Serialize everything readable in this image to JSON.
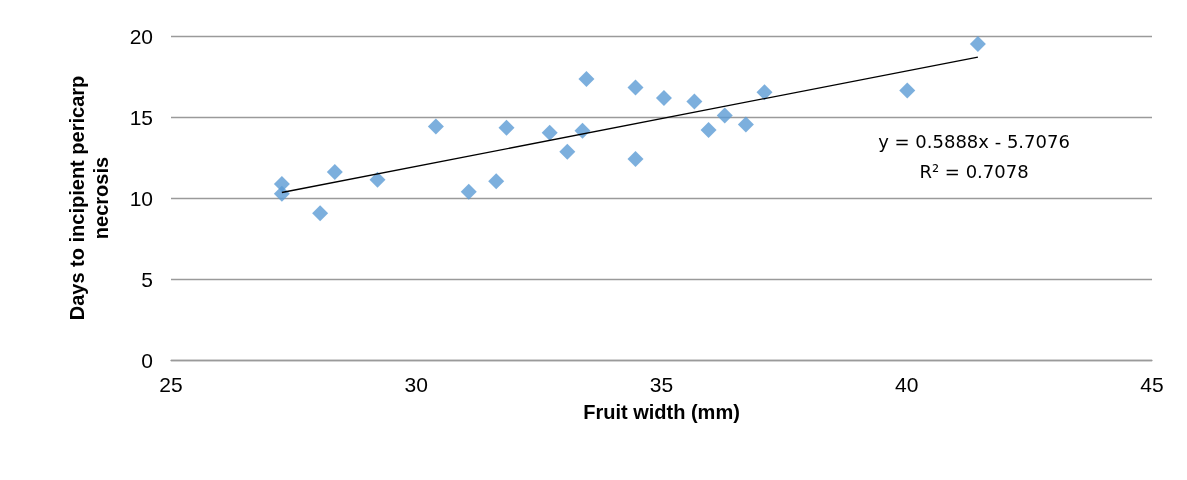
{
  "chart_data": {
    "type": "scatter",
    "xlabel": "Fruit width (mm)",
    "ylabel": "Days to incipient pericarp necrosis",
    "x": [
      27.26,
      27.26,
      28.04,
      28.34,
      29.21,
      30.4,
      31.07,
      31.63,
      31.84,
      32.72,
      33.08,
      33.39,
      33.47,
      34.47,
      34.47,
      35.05,
      35.67,
      35.96,
      36.29,
      36.72,
      37.1,
      40.01,
      41.45
    ],
    "series": [
      {
        "color": "#5b9bd5",
        "values": [
          10.87,
          10.26,
          9.06,
          11.61,
          11.12,
          14.42,
          10.38,
          11.03,
          14.34,
          14.03,
          12.86,
          14.15,
          17.35,
          16.82,
          12.41,
          16.17,
          15.96,
          14.2,
          15.1,
          14.53,
          16.53,
          16.64,
          19.51
        ]
      },
      {
        "type": "line",
        "color": "#000000",
        "x": [
          27.26,
          41.45
        ],
        "values": [
          10.34,
          18.7
        ],
        "marker": "none"
      }
    ],
    "annotations": [
      "y = 0.5888x - 5.7076",
      "R² = 0.7078"
    ],
    "xlim": [
      25,
      45
    ],
    "xticks": [
      25,
      30,
      35,
      40,
      45
    ],
    "ylim": [
      0,
      20
    ],
    "yticks": [
      0,
      5,
      10,
      15,
      20
    ],
    "grid": "y",
    "marker": "diamond"
  }
}
